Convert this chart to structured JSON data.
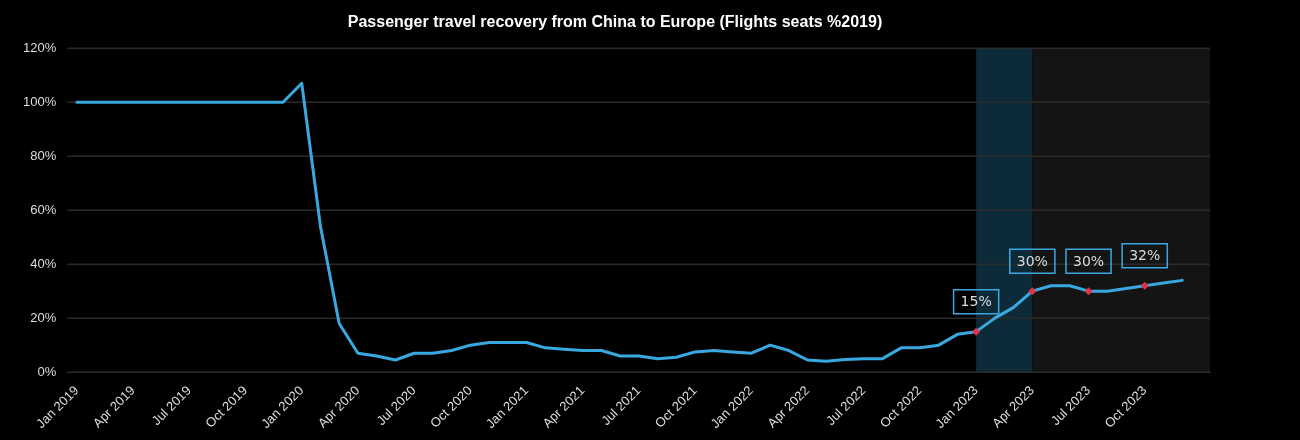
{
  "chart_data": {
    "type": "line",
    "title": "Passenger travel recovery from China to Europe (Flights seats %2019)",
    "x": [
      "2019-01",
      "2019-02",
      "2019-03",
      "2019-04",
      "2019-05",
      "2019-06",
      "2019-07",
      "2019-08",
      "2019-09",
      "2019-10",
      "2019-11",
      "2019-12",
      "2020-01",
      "2020-02",
      "2020-03",
      "2020-04",
      "2020-05",
      "2020-06",
      "2020-07",
      "2020-08",
      "2020-09",
      "2020-10",
      "2020-11",
      "2020-12",
      "2021-01",
      "2021-02",
      "2021-03",
      "2021-04",
      "2021-05",
      "2021-06",
      "2021-07",
      "2021-08",
      "2021-09",
      "2021-10",
      "2021-11",
      "2021-12",
      "2022-01",
      "2022-02",
      "2022-03",
      "2022-04",
      "2022-05",
      "2022-06",
      "2022-07",
      "2022-08",
      "2022-09",
      "2022-10",
      "2022-11",
      "2022-12",
      "2023-01",
      "2023-02",
      "2023-03",
      "2023-04",
      "2023-05",
      "2023-06",
      "2023-07",
      "2023-08",
      "2023-09",
      "2023-10",
      "2023-11",
      "2023-12"
    ],
    "series": [
      {
        "color": "#3aa8e0",
        "values": [
          100,
          100,
          100,
          100,
          100,
          100,
          100,
          100,
          100,
          100,
          100,
          100,
          107,
          54,
          18,
          7,
          6,
          4.5,
          7,
          7,
          8,
          10,
          11,
          11,
          11,
          9,
          8.5,
          8,
          8,
          6,
          6,
          5,
          5.5,
          7.5,
          8,
          7.5,
          7,
          10,
          8,
          4.5,
          4,
          4.7,
          5,
          5,
          9,
          9,
          10,
          14,
          15,
          20,
          24,
          30,
          32,
          32,
          30,
          30,
          31,
          32,
          33,
          34
        ]
      }
    ],
    "xlim": [
      "2018-12-16",
      "2024-01-16"
    ],
    "xticks": [
      {
        "value": "2019-01",
        "label": "Jan 2019"
      },
      {
        "value": "2019-04",
        "label": "Apr 2019"
      },
      {
        "value": "2019-07",
        "label": "Jul 2019"
      },
      {
        "value": "2019-10",
        "label": "Oct 2019"
      },
      {
        "value": "2020-01",
        "label": "Jan 2020"
      },
      {
        "value": "2020-04",
        "label": "Apr 2020"
      },
      {
        "value": "2020-07",
        "label": "Jul 2020"
      },
      {
        "value": "2020-10",
        "label": "Oct 2020"
      },
      {
        "value": "2021-01",
        "label": "Jan 2021"
      },
      {
        "value": "2021-04",
        "label": "Apr 2021"
      },
      {
        "value": "2021-07",
        "label": "Jul 2021"
      },
      {
        "value": "2021-10",
        "label": "Oct 2021"
      },
      {
        "value": "2022-01",
        "label": "Jan 2022"
      },
      {
        "value": "2022-04",
        "label": "Apr 2022"
      },
      {
        "value": "2022-07",
        "label": "Jul 2022"
      },
      {
        "value": "2022-10",
        "label": "Oct 2022"
      },
      {
        "value": "2023-01",
        "label": "Jan 2023"
      },
      {
        "value": "2023-04",
        "label": "Apr 2023"
      },
      {
        "value": "2023-07",
        "label": "Jul 2023"
      },
      {
        "value": "2023-10",
        "label": "Oct 2023"
      }
    ],
    "ylim": [
      0,
      120
    ],
    "yticks": [
      {
        "value": 0,
        "label": "0%"
      },
      {
        "value": 20,
        "label": "20%"
      },
      {
        "value": 40,
        "label": "40%"
      },
      {
        "value": 60,
        "label": "60%"
      },
      {
        "value": 80,
        "label": "80%"
      },
      {
        "value": 100,
        "label": "100%"
      },
      {
        "value": 120,
        "label": "120%"
      }
    ],
    "grid": "y",
    "legend": false,
    "bands": [
      {
        "axis": "x",
        "from": "2023-01",
        "to": "2023-04",
        "color": "#0d2a38"
      },
      {
        "axis": "x",
        "from": "2023-04",
        "to": "2024-01-16",
        "color": "#141414"
      }
    ],
    "annotations": [
      {
        "text": "15%",
        "x": "2023-01",
        "y": 15
      },
      {
        "text": "30%",
        "x": "2023-04",
        "y": 30
      },
      {
        "text": "30%",
        "x": "2023-07",
        "y": 30
      },
      {
        "text": "32%",
        "x": "2023-10",
        "y": 32
      }
    ]
  }
}
